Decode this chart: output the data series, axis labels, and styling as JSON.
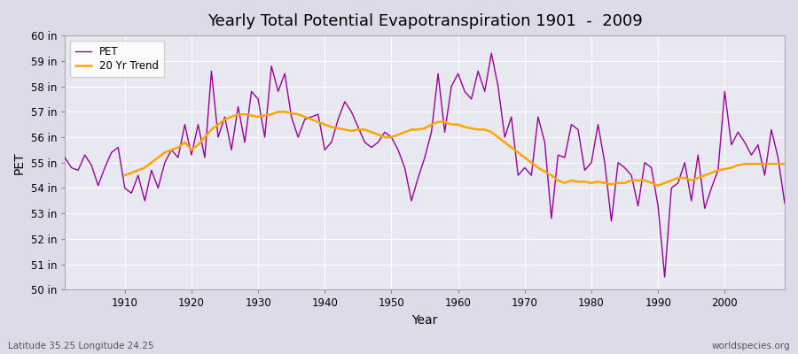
{
  "title": "Yearly Total Potential Evapotranspiration 1901  -  2009",
  "xlabel": "Year",
  "ylabel": "PET",
  "subtitle_left": "Latitude 35.25 Longitude 24.25",
  "subtitle_right": "worldspecies.org",
  "ylim": [
    50,
    60
  ],
  "yticks": [
    50,
    51,
    52,
    53,
    54,
    55,
    56,
    57,
    58,
    59,
    60
  ],
  "ytick_labels": [
    "50 in",
    "51 in",
    "52 in",
    "53 in",
    "54 in",
    "55 in",
    "56 in",
    "57 in",
    "58 in",
    "59 in",
    "60 in"
  ],
  "xlim": [
    1901,
    2009
  ],
  "pet_color": "#990099",
  "trend_color": "#FFA500",
  "bg_color": "#DCDCE8",
  "plot_bg_color": "#E8E8F0",
  "pet_years": [
    1901,
    1902,
    1903,
    1904,
    1905,
    1906,
    1907,
    1908,
    1909,
    1910,
    1911,
    1912,
    1913,
    1914,
    1915,
    1916,
    1917,
    1918,
    1919,
    1920,
    1921,
    1922,
    1923,
    1924,
    1925,
    1926,
    1927,
    1928,
    1929,
    1930,
    1931,
    1932,
    1933,
    1934,
    1935,
    1936,
    1937,
    1938,
    1939,
    1940,
    1941,
    1942,
    1943,
    1944,
    1945,
    1946,
    1947,
    1948,
    1949,
    1950,
    1951,
    1952,
    1953,
    1954,
    1955,
    1956,
    1957,
    1958,
    1959,
    1960,
    1961,
    1962,
    1963,
    1964,
    1965,
    1966,
    1967,
    1968,
    1969,
    1970,
    1971,
    1972,
    1973,
    1974,
    1975,
    1976,
    1977,
    1978,
    1979,
    1980,
    1981,
    1982,
    1983,
    1984,
    1985,
    1986,
    1987,
    1988,
    1989,
    1990,
    1991,
    1992,
    1993,
    1994,
    1995,
    1996,
    1997,
    1998,
    1999,
    2000,
    2001,
    2002,
    2003,
    2004,
    2005,
    2006,
    2007,
    2008,
    2009
  ],
  "pet_values": [
    55.2,
    54.8,
    54.7,
    55.3,
    54.9,
    54.1,
    54.8,
    55.4,
    55.6,
    54.0,
    53.8,
    54.5,
    53.5,
    54.7,
    54.0,
    55.0,
    55.5,
    55.2,
    56.5,
    55.3,
    56.5,
    55.2,
    58.6,
    56.0,
    56.8,
    55.5,
    57.2,
    55.8,
    57.8,
    57.5,
    56.0,
    58.8,
    57.8,
    58.5,
    56.8,
    56.0,
    56.7,
    56.8,
    56.9,
    55.5,
    55.8,
    56.7,
    57.4,
    57.0,
    56.4,
    55.8,
    55.6,
    55.8,
    56.2,
    56.0,
    55.5,
    54.8,
    53.5,
    54.4,
    55.2,
    56.2,
    58.5,
    56.2,
    58.0,
    58.5,
    57.8,
    57.5,
    58.6,
    57.8,
    59.3,
    58.0,
    56.0,
    56.8,
    54.5,
    54.8,
    54.5,
    56.8,
    55.8,
    52.8,
    55.3,
    55.2,
    56.5,
    56.3,
    54.7,
    55.0,
    56.5,
    55.0,
    52.7,
    55.0,
    54.8,
    54.5,
    53.3,
    55.0,
    54.8,
    53.3,
    50.5,
    54.0,
    54.2,
    55.0,
    53.5,
    55.3,
    53.2,
    54.0,
    54.7,
    57.8,
    55.7,
    56.2,
    55.8,
    55.3,
    55.7,
    54.5,
    56.3,
    55.2,
    53.4
  ],
  "trend_years": [
    1910,
    1911,
    1912,
    1913,
    1914,
    1915,
    1916,
    1917,
    1918,
    1919,
    1920,
    1921,
    1922,
    1923,
    1924,
    1925,
    1926,
    1927,
    1928,
    1929,
    1930,
    1931,
    1932,
    1933,
    1934,
    1935,
    1936,
    1937,
    1938,
    1939,
    1940,
    1941,
    1942,
    1943,
    1944,
    1945,
    1946,
    1947,
    1948,
    1949,
    1950,
    1951,
    1952,
    1953,
    1954,
    1955,
    1956,
    1957,
    1958,
    1959,
    1960,
    1961,
    1962,
    1963,
    1964,
    1965,
    1966,
    1967,
    1968,
    1969,
    1970,
    1971,
    1972,
    1973,
    1974,
    1975,
    1976,
    1977,
    1978,
    1979,
    1980,
    1981,
    1982,
    1983,
    1984,
    1985,
    1986,
    1987,
    1988,
    1989,
    1990,
    1991,
    1992,
    1993,
    1994,
    1995,
    1996,
    1997,
    1998,
    1999,
    2000,
    2001,
    2002,
    2003,
    2004,
    2005,
    2006,
    2007,
    2008,
    2009
  ],
  "trend_values": [
    54.5,
    54.6,
    54.7,
    54.8,
    55.0,
    55.2,
    55.4,
    55.5,
    55.6,
    55.8,
    55.5,
    55.7,
    56.0,
    56.3,
    56.5,
    56.7,
    56.8,
    56.9,
    56.9,
    56.85,
    56.8,
    56.85,
    56.9,
    57.0,
    57.0,
    56.95,
    56.9,
    56.8,
    56.7,
    56.6,
    56.5,
    56.4,
    56.35,
    56.3,
    56.25,
    56.3,
    56.3,
    56.2,
    56.1,
    56.0,
    56.0,
    56.1,
    56.2,
    56.3,
    56.3,
    56.35,
    56.5,
    56.6,
    56.6,
    56.5,
    56.5,
    56.4,
    56.35,
    56.3,
    56.3,
    56.2,
    56.0,
    55.8,
    55.6,
    55.4,
    55.2,
    55.0,
    54.8,
    54.65,
    54.5,
    54.3,
    54.2,
    54.3,
    54.25,
    54.25,
    54.2,
    54.25,
    54.2,
    54.15,
    54.2,
    54.2,
    54.3,
    54.3,
    54.3,
    54.2,
    54.1,
    54.2,
    54.3,
    54.4,
    54.4,
    54.3,
    54.4,
    54.5,
    54.6,
    54.7,
    54.75,
    54.8,
    54.9,
    54.95,
    54.95,
    54.95,
    54.95,
    54.95,
    54.95,
    54.95
  ]
}
